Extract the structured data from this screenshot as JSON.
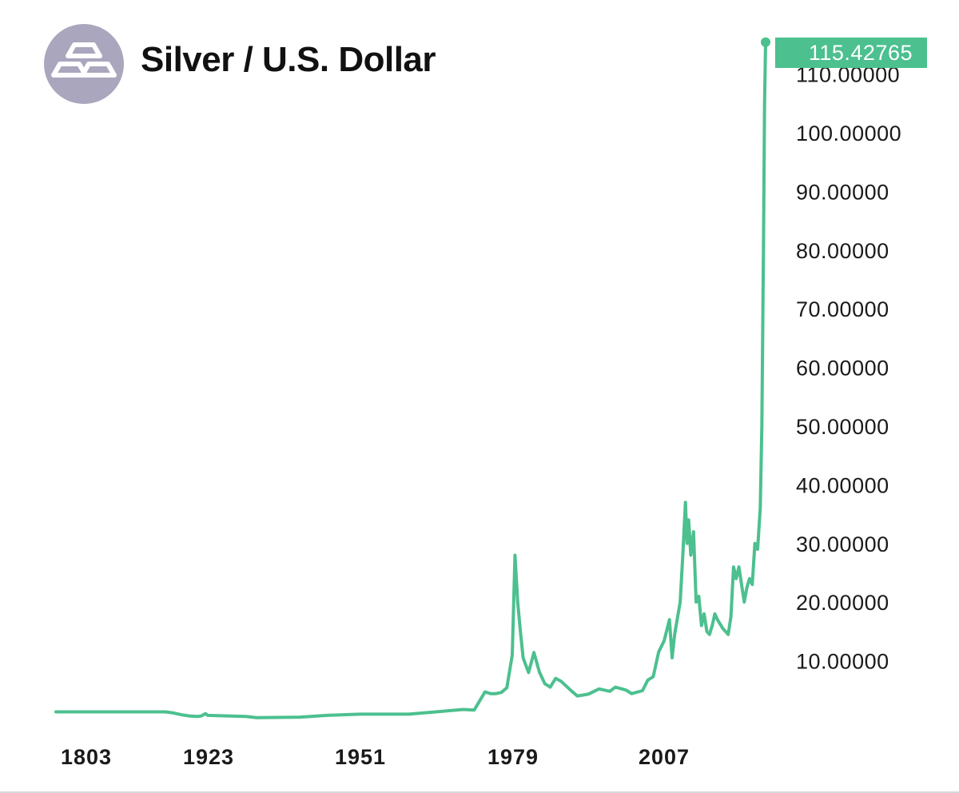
{
  "header": {
    "title": "Silver / U.S. Dollar",
    "icon": "silver-bars-icon"
  },
  "colors": {
    "line": "#4cc08f",
    "fill_top": "#e8f8f2",
    "badge_bg": "#4cc08f",
    "badge_text": "#ffffff",
    "axis_text": "#1a1a1a",
    "icon_bg": "#a9a6bd"
  },
  "chart_data": {
    "type": "line",
    "title": "Silver / U.S. Dollar",
    "xlabel": "",
    "ylabel": "",
    "ylim": [
      0,
      115.42765
    ],
    "grid": false,
    "legend": "none",
    "x_tick_labels": [
      "1803",
      "1923",
      "1951",
      "1979",
      "2007"
    ],
    "y_tick_labels": [
      "10.00000",
      "20.00000",
      "30.00000",
      "40.00000",
      "50.00000",
      "60.00000",
      "70.00000",
      "80.00000",
      "90.00000",
      "100.00000",
      "110.00000"
    ],
    "last_value_label": "115.42765",
    "series": [
      {
        "x": [
          1793,
          1800,
          1803,
          1820,
          1850,
          1870,
          1880,
          1890,
          1900,
          1910,
          1915,
          1920,
          1923,
          1930,
          1932,
          1940,
          1945,
          1951,
          1960,
          1965,
          1970,
          1972,
          1974,
          1975,
          1976,
          1977,
          1978,
          1979,
          1979.5,
          1980,
          1980.5,
          1981,
          1982,
          1983,
          1984,
          1985,
          1986,
          1987,
          1988,
          1990,
          1991,
          1993,
          1995,
          1997,
          1998,
          2000,
          2001,
          2003,
          2004,
          2005,
          2006,
          2007,
          2008,
          2008.5,
          2009,
          2010,
          2010.5,
          2011,
          2011.3,
          2011.6,
          2012,
          2012.5,
          2013,
          2013.5,
          2014,
          2014.5,
          2015,
          2015.5,
          2016,
          2016.5,
          2017,
          2018,
          2019,
          2019.5,
          2020,
          2020.5,
          2021,
          2021.5,
          2022,
          2022.5,
          2023,
          2023.5,
          2024,
          2024.5,
          2025,
          2025.3,
          2025.6,
          2025.8,
          2026
        ],
        "y": [
          1.3,
          1.3,
          1.3,
          1.3,
          1.3,
          1.3,
          1.1,
          0.8,
          0.6,
          0.5,
          0.6,
          1.0,
          0.7,
          0.5,
          0.3,
          0.4,
          0.7,
          0.9,
          0.9,
          1.3,
          1.7,
          1.6,
          4.7,
          4.4,
          4.4,
          4.6,
          5.4,
          11.0,
          28.0,
          20.0,
          15.0,
          10.5,
          8.0,
          11.4,
          8.1,
          6.1,
          5.5,
          7.0,
          6.5,
          4.8,
          4.0,
          4.3,
          5.2,
          4.8,
          5.5,
          5.0,
          4.4,
          4.9,
          6.7,
          7.3,
          11.5,
          13.4,
          17.0,
          10.5,
          14.7,
          20.0,
          28.0,
          37.0,
          30.0,
          34.0,
          28.0,
          32.0,
          20.0,
          21.0,
          16.0,
          18.0,
          15.0,
          14.5,
          16.0,
          18.0,
          17.0,
          15.5,
          14.5,
          17.5,
          26.0,
          24.0,
          26.0,
          23.0,
          20.0,
          22.5,
          24.0,
          23.0,
          30.0,
          29.0,
          36.0,
          50.0,
          80.0,
          105.0,
          115.42765
        ]
      }
    ]
  }
}
